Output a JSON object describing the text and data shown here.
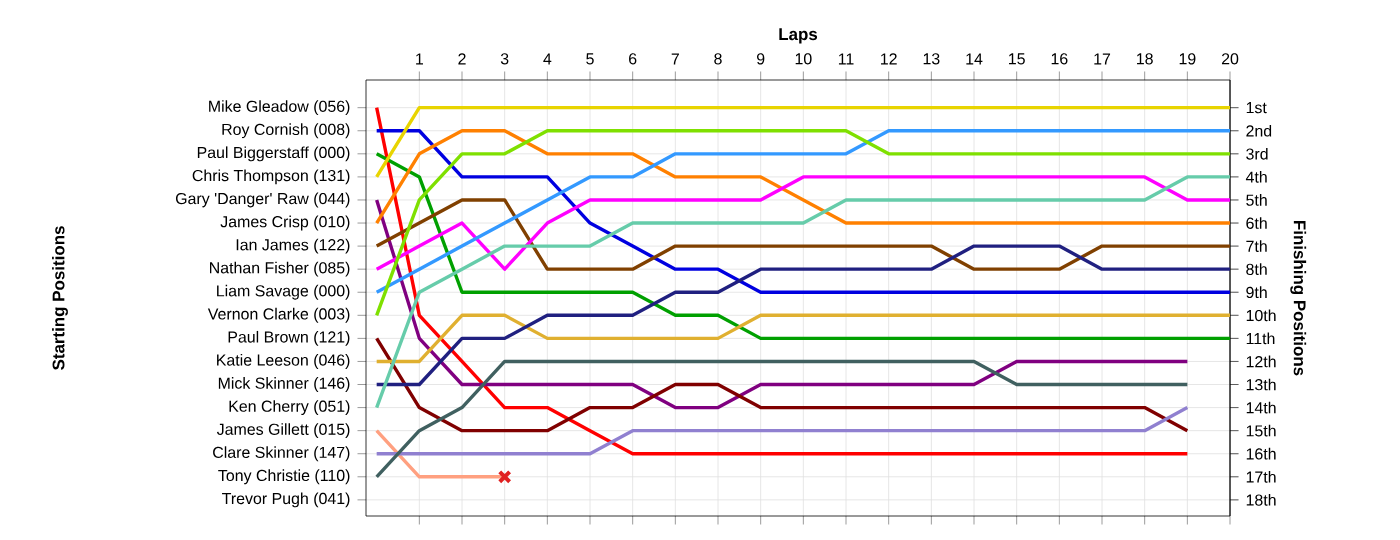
{
  "chart_data": {
    "type": "line",
    "xlabel": "Laps",
    "annotations": [
      "Starting Positions"
    ],
    "y2label": "Finishing Positions",
    "x": [
      0,
      1,
      2,
      3,
      4,
      5,
      6,
      7,
      8,
      9,
      10,
      11,
      12,
      13,
      14,
      15,
      16,
      17,
      18,
      19,
      20
    ],
    "xlim": [
      -0.25,
      20
    ],
    "xticks": [
      1,
      2,
      3,
      4,
      5,
      6,
      7,
      8,
      9,
      10,
      11,
      12,
      13,
      14,
      15,
      16,
      17,
      18,
      19,
      20
    ],
    "y_categories": [
      "Mike Gleadow (056)",
      "Roy Cornish (008)",
      "Paul Biggerstaff (000)",
      "Chris Thompson (131)",
      "Gary 'Danger' Raw (044)",
      "James Crisp (010)",
      "Ian James (122)",
      "Nathan Fisher (085)",
      "Liam Savage (000)",
      "Vernon Clarke (003)",
      "Paul Brown (121)",
      "Katie Leeson (046)",
      "Mick Skinner (146)",
      "Ken Cherry (051)",
      "James Gillett (015)",
      "Clare Skinner (147)",
      "Tony Christie (110)",
      "Trevor Pugh (041)"
    ],
    "y2lim": [
      18.7,
      -0.2
    ],
    "y2ticks": [
      {
        "value": 1,
        "label": "1st"
      },
      {
        "value": 2,
        "label": "2nd"
      },
      {
        "value": 3,
        "label": "3rd"
      },
      {
        "value": 4,
        "label": "4th"
      },
      {
        "value": 5,
        "label": "5th"
      },
      {
        "value": 6,
        "label": "6th"
      },
      {
        "value": 7,
        "label": "7th"
      },
      {
        "value": 8,
        "label": "8th"
      },
      {
        "value": 9,
        "label": "9th"
      },
      {
        "value": 10,
        "label": "10th"
      },
      {
        "value": 11,
        "label": "11th"
      },
      {
        "value": 12,
        "label": "12th"
      },
      {
        "value": 13,
        "label": "13th"
      },
      {
        "value": 14,
        "label": "14th"
      },
      {
        "value": 15,
        "label": "15th"
      },
      {
        "value": 16,
        "label": "16th"
      },
      {
        "value": 17,
        "label": "17th"
      },
      {
        "value": 18,
        "label": "18th"
      }
    ],
    "grid": true,
    "series": [
      {
        "axis": "y2",
        "color": "#ff0000",
        "values": [
          1,
          10,
          12,
          14,
          14,
          15,
          16,
          16,
          16,
          16,
          16,
          16,
          16,
          16,
          16,
          16,
          16,
          16,
          16,
          16,
          null
        ]
      },
      {
        "axis": "y2",
        "color": "#0000e0",
        "values": [
          2,
          2,
          4,
          4,
          4,
          6,
          7,
          8,
          8,
          9,
          9,
          9,
          9,
          9,
          9,
          9,
          9,
          9,
          9,
          9,
          9
        ]
      },
      {
        "axis": "y2",
        "color": "#00a000",
        "values": [
          3,
          4,
          9,
          9,
          9,
          9,
          9,
          10,
          10,
          11,
          11,
          11,
          11,
          11,
          11,
          11,
          11,
          11,
          11,
          11,
          11
        ]
      },
      {
        "axis": "y2",
        "color": "#e8d400",
        "values": [
          4,
          1,
          1,
          1,
          1,
          1,
          1,
          1,
          1,
          1,
          1,
          1,
          1,
          1,
          1,
          1,
          1,
          1,
          1,
          1,
          1
        ]
      },
      {
        "axis": "y2",
        "color": "#800080",
        "values": [
          5,
          11,
          13,
          13,
          13,
          13,
          13,
          14,
          14,
          13,
          13,
          13,
          13,
          13,
          13,
          12,
          12,
          12,
          12,
          12,
          null
        ]
      },
      {
        "axis": "y2",
        "color": "#ff8000",
        "values": [
          6,
          3,
          2,
          2,
          3,
          3,
          3,
          4,
          4,
          4,
          5,
          6,
          6,
          6,
          6,
          6,
          6,
          6,
          6,
          6,
          6
        ]
      },
      {
        "axis": "y2",
        "color": "#804000",
        "values": [
          7,
          6,
          5,
          5,
          8,
          8,
          8,
          7,
          7,
          7,
          7,
          7,
          7,
          7,
          8,
          8,
          8,
          7,
          7,
          7,
          7
        ]
      },
      {
        "axis": "y2",
        "color": "#ff00ff",
        "values": [
          8,
          7,
          6,
          8,
          6,
          5,
          5,
          5,
          5,
          5,
          4,
          4,
          4,
          4,
          4,
          4,
          4,
          4,
          4,
          5,
          5
        ]
      },
      {
        "axis": "y2",
        "color": "#3399ff",
        "values": [
          9,
          8,
          7,
          6,
          5,
          4,
          4,
          3,
          3,
          3,
          3,
          3,
          2,
          2,
          2,
          2,
          2,
          2,
          2,
          2,
          2
        ]
      },
      {
        "axis": "y2",
        "color": "#7fe000",
        "values": [
          10,
          5,
          3,
          3,
          2,
          2,
          2,
          2,
          2,
          2,
          2,
          2,
          3,
          3,
          3,
          3,
          3,
          3,
          3,
          3,
          3
        ]
      },
      {
        "axis": "y2",
        "color": "#800000",
        "values": [
          11,
          14,
          15,
          15,
          15,
          14,
          14,
          13,
          13,
          14,
          14,
          14,
          14,
          14,
          14,
          14,
          14,
          14,
          14,
          15,
          null
        ]
      },
      {
        "axis": "y2",
        "color": "#e0b030",
        "values": [
          12,
          12,
          10,
          10,
          11,
          11,
          11,
          11,
          11,
          10,
          10,
          10,
          10,
          10,
          10,
          10,
          10,
          10,
          10,
          10,
          10
        ]
      },
      {
        "axis": "y2",
        "color": "#202080",
        "values": [
          13,
          13,
          11,
          11,
          10,
          10,
          10,
          9,
          9,
          8,
          8,
          8,
          8,
          8,
          7,
          7,
          7,
          8,
          8,
          8,
          8
        ]
      },
      {
        "axis": "y2",
        "color": "#66ccaa",
        "values": [
          14,
          9,
          8,
          7,
          7,
          7,
          6,
          6,
          6,
          6,
          6,
          5,
          5,
          5,
          5,
          5,
          5,
          5,
          5,
          4,
          4
        ]
      },
      {
        "axis": "y2",
        "color": "#ffa080",
        "values": [
          15,
          17,
          17,
          17,
          null,
          null,
          null,
          null,
          null,
          null,
          null,
          null,
          null,
          null,
          null,
          null,
          null,
          null,
          null,
          null,
          null
        ]
      },
      {
        "axis": "y2",
        "color": "#9080d0",
        "values": [
          16,
          16,
          16,
          16,
          16,
          16,
          15,
          15,
          15,
          15,
          15,
          15,
          15,
          15,
          15,
          15,
          15,
          15,
          15,
          14,
          null
        ]
      },
      {
        "axis": "y2",
        "color": "#406060",
        "values": [
          17,
          15,
          14,
          12,
          12,
          12,
          12,
          12,
          12,
          12,
          12,
          12,
          12,
          12,
          12,
          13,
          13,
          13,
          13,
          13,
          null
        ]
      },
      {
        "axis": "y2",
        "type": "scatter",
        "marker": "cross",
        "color": "#e02020",
        "x": [
          3
        ],
        "values": [
          17
        ]
      }
    ]
  }
}
